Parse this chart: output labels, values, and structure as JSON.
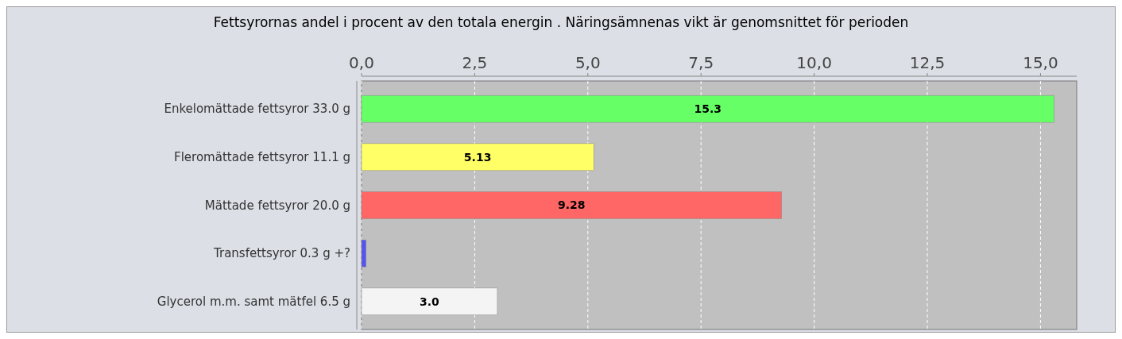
{
  "chart_data": {
    "type": "bar",
    "orientation": "horizontal",
    "title": "Fettsyrornas andel i procent av den totala energin . Näringsämnenas vikt är genomsnittet för perioden",
    "categories": [
      "Enkelomättade fettsyror 33.0 g",
      "Fleromättade fettsyror 11.1 g",
      "Mättade fettsyror 20.0 g",
      "Transfettsyror 0.3 g +?",
      "Glycerol m.m. samt mätfel 6.5 g"
    ],
    "values": [
      15.3,
      5.13,
      9.28,
      0.1,
      3.0
    ],
    "value_labels": [
      "15.3",
      "5.13",
      "9.28",
      null,
      "3.0"
    ],
    "colors": [
      "#66ff66",
      "#ffff66",
      "#ff6666",
      "#5555ee",
      "#f4f4f4"
    ],
    "xlim": [
      0,
      15.8
    ],
    "xticks": [
      {
        "value": 0,
        "label": "0,0"
      },
      {
        "value": 2.5,
        "label": "2,5"
      },
      {
        "value": 5,
        "label": "5,0"
      },
      {
        "value": 7.5,
        "label": "7,5"
      },
      {
        "value": 10,
        "label": "10,0"
      },
      {
        "value": 12.5,
        "label": "12,5"
      },
      {
        "value": 15,
        "label": "15,0"
      }
    ],
    "grid": "x"
  }
}
